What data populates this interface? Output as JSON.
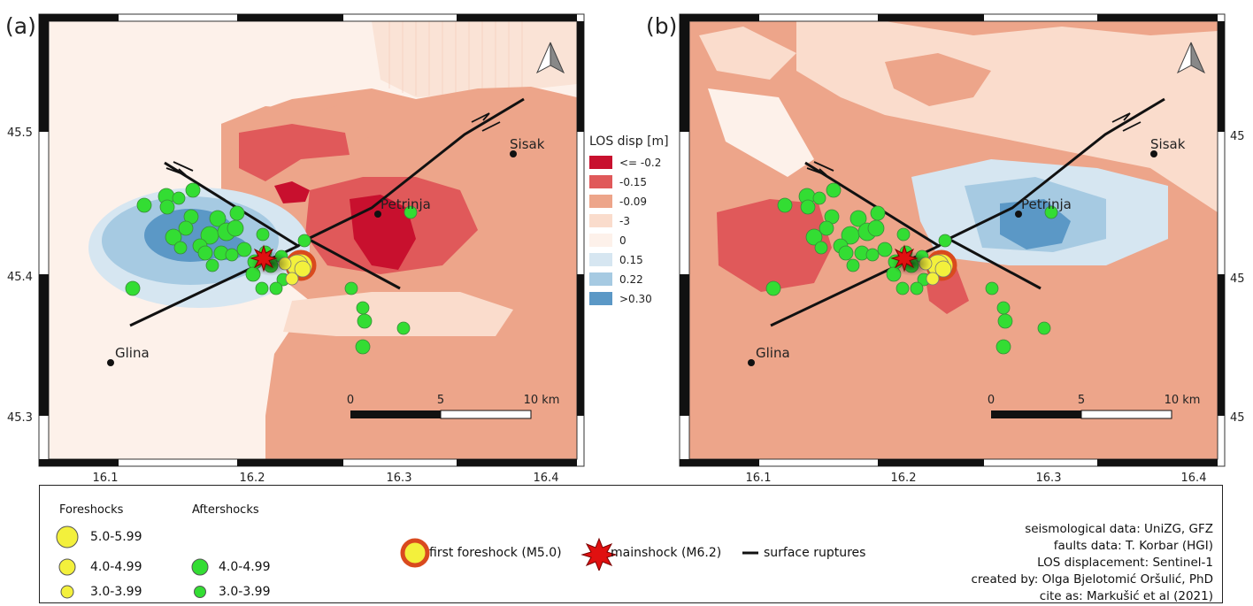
{
  "panels": [
    {
      "label": "(a)",
      "lat_ticks": [
        "45.5",
        "45.4",
        "45.3"
      ],
      "lat_ticks_right": [],
      "lon_ticks": [
        "16.1",
        "16.2",
        "16.3",
        "16.4"
      ]
    },
    {
      "label": "(b)",
      "lat_ticks": [],
      "lat_ticks_right": [
        "45",
        "45",
        "45"
      ],
      "lon_ticks": [
        "16.1",
        "16.2",
        "16.3",
        "16.4"
      ]
    }
  ],
  "places": [
    "Sisak",
    "Petrinja",
    "Glina"
  ],
  "scalebar": {
    "ticks": [
      "0",
      "5",
      "10 km"
    ]
  },
  "los_legend": {
    "title": "LOS disp [m]",
    "classes": [
      {
        "label": "<= -0.2",
        "color": "#c8102e"
      },
      {
        "label": "-0.15",
        "color": "#e0595a"
      },
      {
        "label": "-0.09",
        "color": "#eda58a"
      },
      {
        "label": "-3",
        "color": "#fadccc"
      },
      {
        "label": "0",
        "color": "#fdf1ea"
      },
      {
        "label": "0.15",
        "color": "#d6e6f1"
      },
      {
        "label": "0.22",
        "color": "#a6cae2"
      },
      {
        "label": ">0.30",
        "color": "#5b98c6"
      }
    ]
  },
  "legend": {
    "foreshocks_title": "Foreshocks",
    "aftershocks_title": "Aftershocks",
    "foreshock_classes": [
      "5.0-5.99",
      "4.0-4.99",
      "3.0-3.99"
    ],
    "aftershock_classes": [
      "4.0-4.99",
      "3.0-3.99"
    ],
    "first_foreshock": "first foreshock (M5.0)",
    "mainshock": "mainshock (M6.2)",
    "surface_ruptures": "surface ruptures",
    "credits": [
      "seismological data: UniZG, GFZ",
      "faults data: T. Korbar (HGI)",
      "LOS displacement: Sentinel-1",
      "created by: Olga Bjelotomić Oršulić, PhD",
      "cite as: Markušić et al (2021)"
    ]
  },
  "colors": {
    "aftershock": "#33dd33",
    "foreshock": "#f3f03c",
    "first_foreshock_ring": "#d94a1e",
    "mainshock": "#e01010",
    "fault": "#111111"
  }
}
